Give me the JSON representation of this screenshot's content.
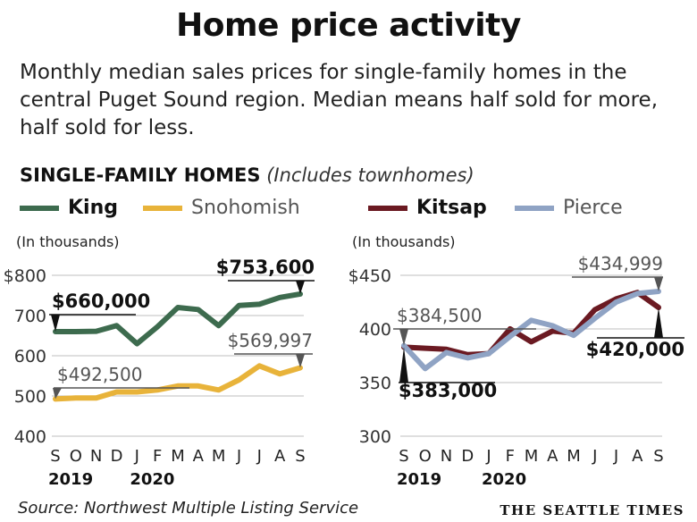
{
  "title": "Home price activity",
  "subtitle": "Monthly median sales prices for single-family homes in the central Puget Sound region. Median means half sold for more, half sold for less.",
  "section_title": "SINGLE-FAMILY HOMES",
  "section_note": "(Includes townhomes)",
  "source": "Source: Northwest Multiple Listing Service",
  "credit": "THE SEATTLE TIMES",
  "colors": {
    "king": "#3d6b4e",
    "snohomish": "#e8b33a",
    "kitsap": "#6b1a22",
    "pierce": "#8fa3c4"
  },
  "chart_data": [
    {
      "type": "line",
      "unit_label": "(In thousands)",
      "x": [
        "S",
        "O",
        "N",
        "D",
        "J",
        "F",
        "M",
        "A",
        "M",
        "J",
        "J",
        "A",
        "S"
      ],
      "year_labels": [
        {
          "at": 0,
          "label": "2019"
        },
        {
          "at": 4,
          "label": "2020"
        }
      ],
      "ylim": [
        400,
        800
      ],
      "yticks": [
        {
          "v": 800,
          "label": "$800"
        },
        {
          "v": 700,
          "label": "700"
        },
        {
          "v": 600,
          "label": "600"
        },
        {
          "v": 500,
          "label": "500"
        },
        {
          "v": 400,
          "label": "400"
        }
      ],
      "series": [
        {
          "name": "King",
          "key": "king",
          "values": [
            660,
            660,
            661,
            675,
            630,
            672,
            720,
            715,
            675,
            725,
            728,
            745,
            753.6
          ]
        },
        {
          "name": "Snohomish",
          "key": "snohomish",
          "values": [
            492.5,
            495,
            495,
            510,
            510,
            515,
            525,
            525,
            515,
            540,
            575,
            555,
            570
          ]
        }
      ],
      "annotations": [
        {
          "text": "$660,000",
          "series": 0,
          "index": 0,
          "bold": true
        },
        {
          "text": "$753,600",
          "series": 0,
          "index": 12,
          "bold": true
        },
        {
          "text": "$492,500",
          "series": 1,
          "index": 0,
          "bold": false
        },
        {
          "text": "$569,997",
          "series": 1,
          "index": 12,
          "bold": false
        }
      ]
    },
    {
      "type": "line",
      "unit_label": "(In thousands)",
      "x": [
        "S",
        "O",
        "N",
        "D",
        "J",
        "F",
        "M",
        "A",
        "M",
        "J",
        "J",
        "A",
        "S"
      ],
      "year_labels": [
        {
          "at": 0,
          "label": "2019"
        },
        {
          "at": 4,
          "label": "2020"
        }
      ],
      "ylim": [
        300,
        450
      ],
      "yticks": [
        {
          "v": 450,
          "label": "$450"
        },
        {
          "v": 400,
          "label": "400"
        },
        {
          "v": 350,
          "label": "350"
        },
        {
          "v": 300,
          "label": "300"
        }
      ],
      "series": [
        {
          "name": "Kitsap",
          "key": "kitsap",
          "values": [
            383,
            382,
            381,
            376,
            377,
            400,
            388,
            398,
            396,
            418,
            428,
            434,
            420
          ]
        },
        {
          "name": "Pierce",
          "key": "pierce",
          "values": [
            384.5,
            363,
            378,
            373,
            377,
            393,
            408,
            403,
            394,
            410,
            425,
            433,
            435
          ]
        }
      ],
      "annotations": [
        {
          "text": "$384,500",
          "series": 1,
          "index": 0,
          "bold": false
        },
        {
          "text": "$383,000",
          "series": 0,
          "index": 0,
          "bold": true
        },
        {
          "text": "$434,999",
          "series": 1,
          "index": 12,
          "bold": false
        },
        {
          "text": "$420,000",
          "series": 0,
          "index": 12,
          "bold": true
        }
      ]
    }
  ]
}
